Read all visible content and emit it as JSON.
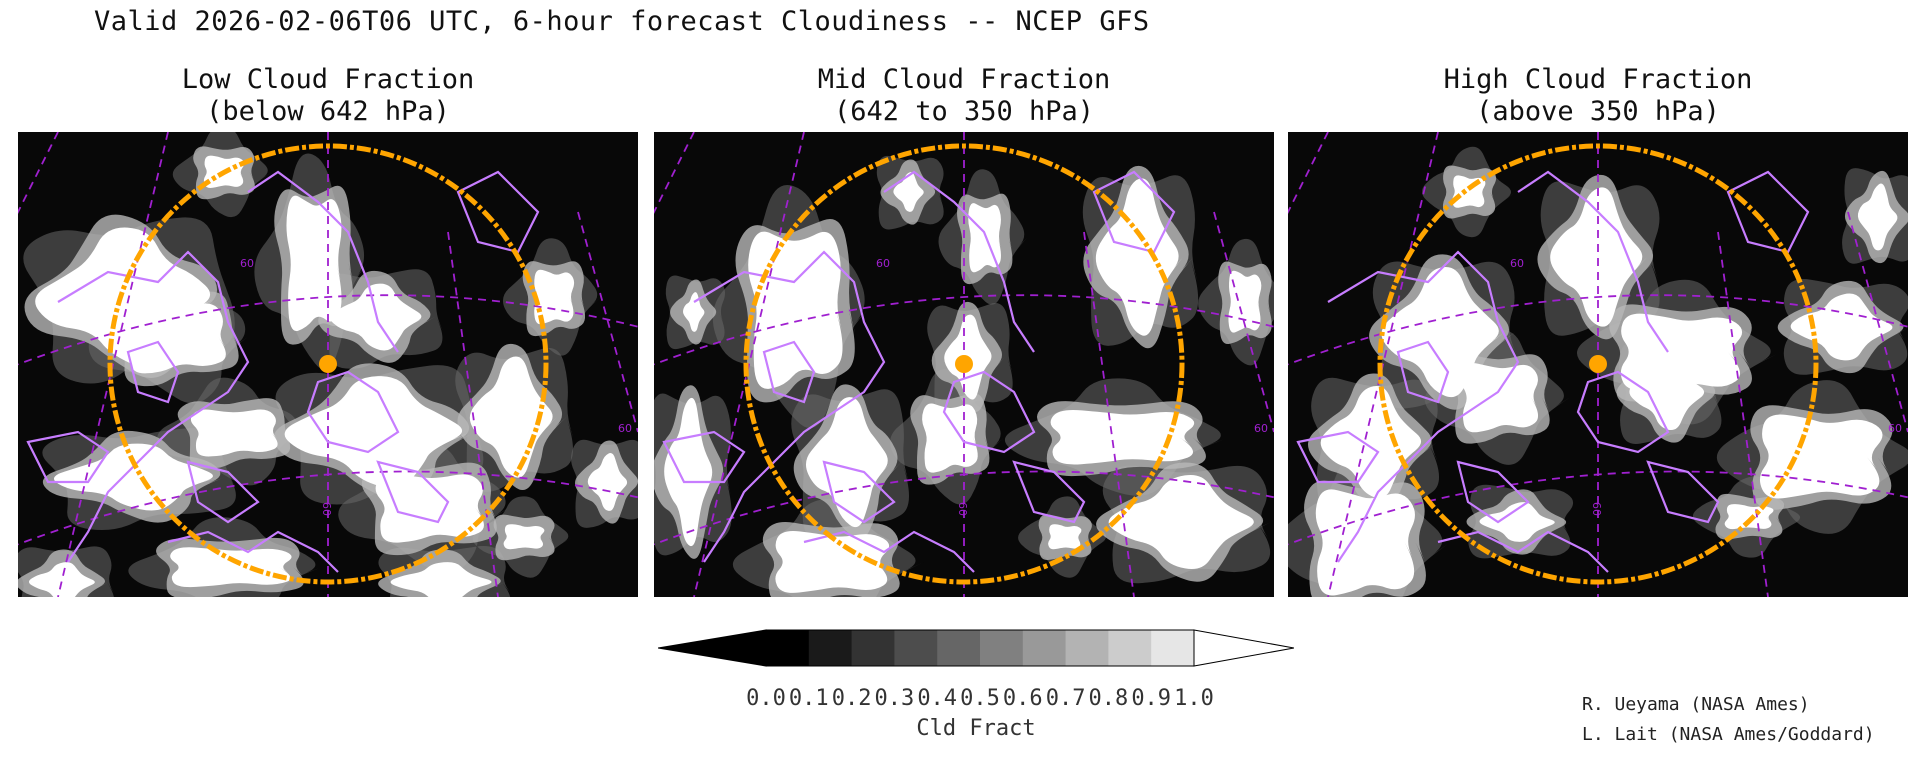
{
  "title": "Valid 2026-02-06T06 UTC, 6-hour forecast Cloudiness -- NCEP GFS",
  "panels": [
    {
      "line1": "Low Cloud Fraction",
      "line2": "(below 642 hPa)",
      "cloud_field": "low"
    },
    {
      "line1": "Mid Cloud Fraction",
      "line2": "(642 to 350 hPa)",
      "cloud_field": "mid"
    },
    {
      "line1": "High Cloud Fraction",
      "line2": "(above 350 hPa)",
      "cloud_field": "high"
    }
  ],
  "map_labels": {
    "lat_label": "60",
    "lon_label": "60",
    "edge_label": "60"
  },
  "colorbar": {
    "label": "Cld Fract",
    "ticks": [
      "0.0",
      "0.1",
      "0.2",
      "0.3",
      "0.4",
      "0.5",
      "0.6",
      "0.7",
      "0.8",
      "0.9",
      "1.0"
    ],
    "colors": [
      "#000000",
      "#1a1a1a",
      "#333333",
      "#4d4d4d",
      "#666666",
      "#808080",
      "#999999",
      "#b3b3b3",
      "#cccccc",
      "#e6e6e6"
    ],
    "under_color": "#000000",
    "over_color": "#ffffff"
  },
  "colors": {
    "coastline": "#c77dff",
    "gridline": "#a020d0",
    "range_ring": "#ffa500",
    "site_marker": "#ffa500"
  },
  "credits": [
    "R. Ueyama (NASA Ames)",
    "L. Lait (NASA Ames/Goddard)"
  ]
}
